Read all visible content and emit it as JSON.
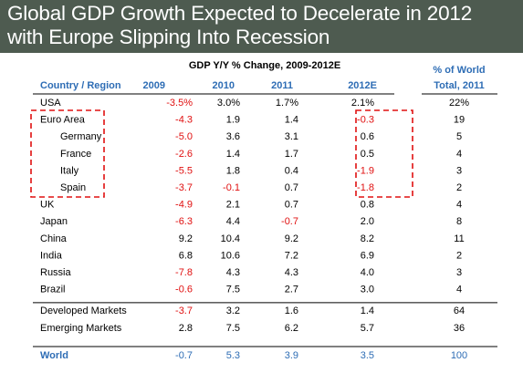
{
  "title_lines": [
    "Global GDP Growth Expected to Decelerate in 2012",
    "with Europe Slipping Into Recession"
  ],
  "colors": {
    "header_bg": "#4e5b50",
    "accent_blue": "#2e6db5",
    "negative_red": "#e01010",
    "highlight_red": "#e01010",
    "text": "#000000"
  },
  "chart_data": {
    "type": "table",
    "title": "GDP Y/Y % Change, 2009-2012E",
    "columns": [
      "Country / Region",
      "2009",
      "2010",
      "2011",
      "2012E",
      "% of World Total, 2011"
    ],
    "column_headers": {
      "country": "Country / Region",
      "y2009": "2009",
      "y2010": "2010",
      "y2011": "2011",
      "y2012": "2012E",
      "world_share_line1": "% of World",
      "world_share_line2": "Total, 2011"
    },
    "rows": [
      {
        "name": "USA",
        "indent": false,
        "values": [
          "-3.5%",
          "3.0%",
          "1.7%",
          "2.1%"
        ],
        "share": "22%"
      },
      {
        "name": "Euro Area",
        "indent": false,
        "values": [
          "-4.3",
          "1.9",
          "1.4",
          "-0.3"
        ],
        "share": "19"
      },
      {
        "name": "Germany",
        "indent": true,
        "values": [
          "-5.0",
          "3.6",
          "3.1",
          "0.6"
        ],
        "share": "5"
      },
      {
        "name": "France",
        "indent": true,
        "values": [
          "-2.6",
          "1.4",
          "1.7",
          "0.5"
        ],
        "share": "4"
      },
      {
        "name": "Italy",
        "indent": true,
        "values": [
          "-5.5",
          "1.8",
          "0.4",
          "-1.9"
        ],
        "share": "3"
      },
      {
        "name": "Spain",
        "indent": true,
        "values": [
          "-3.7",
          "-0.1",
          "0.7",
          "-1.8"
        ],
        "share": "2"
      },
      {
        "name": "UK",
        "indent": false,
        "values": [
          "-4.9",
          "2.1",
          "0.7",
          "0.8"
        ],
        "share": "4"
      },
      {
        "name": "Japan",
        "indent": false,
        "values": [
          "-6.3",
          "4.4",
          "-0.7",
          "2.0"
        ],
        "share": "8"
      },
      {
        "name": "China",
        "indent": false,
        "values": [
          "9.2",
          "10.4",
          "9.2",
          "8.2"
        ],
        "share": "11"
      },
      {
        "name": "India",
        "indent": false,
        "values": [
          "6.8",
          "10.6",
          "7.2",
          "6.9"
        ],
        "share": "2"
      },
      {
        "name": "Russia",
        "indent": false,
        "values": [
          "-7.8",
          "4.3",
          "4.3",
          "4.0"
        ],
        "share": "3"
      },
      {
        "name": "Brazil",
        "indent": false,
        "values": [
          "-0.6",
          "7.5",
          "2.7",
          "3.0"
        ],
        "share": "4"
      },
      {
        "name": "Developed Markets",
        "indent": false,
        "values": [
          "-3.7",
          "3.2",
          "1.6",
          "1.4"
        ],
        "share": "64"
      },
      {
        "name": "Emerging Markets",
        "indent": false,
        "values": [
          "2.8",
          "7.5",
          "6.2",
          "5.7"
        ],
        "share": "36"
      }
    ],
    "total_row": {
      "name": "World",
      "values": [
        "-0.7",
        "5.3",
        "3.9",
        "3.5"
      ],
      "share": "100"
    }
  }
}
